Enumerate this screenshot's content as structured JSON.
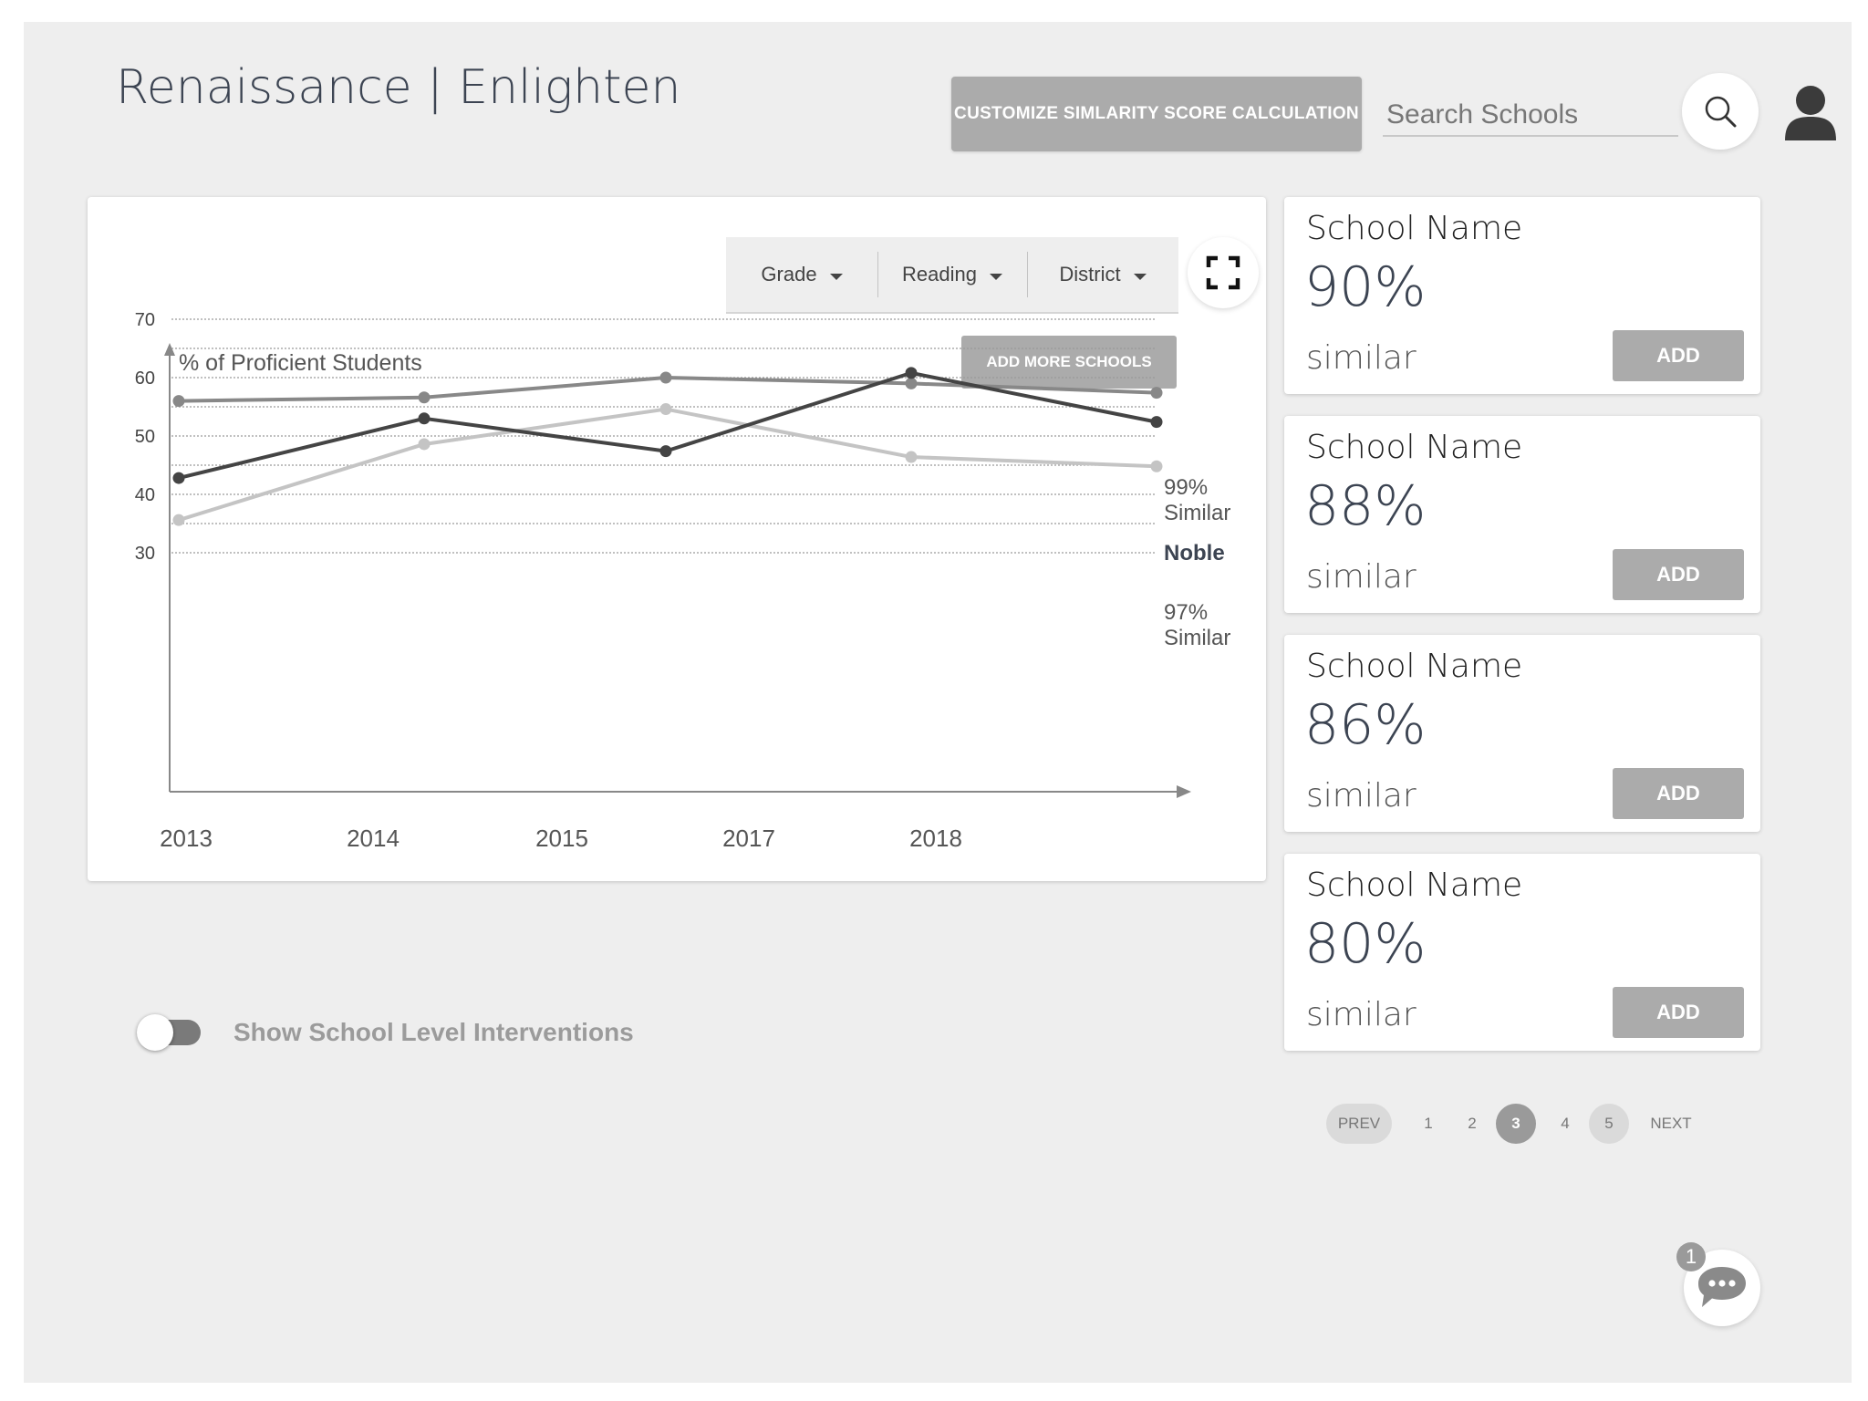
{
  "header": {
    "title": "Renaissance | Enlighten",
    "customize_button": "CUSTOMIZE SIMLARITY SCORE CALCULATION",
    "search_placeholder": "Search Schools"
  },
  "filters": [
    {
      "label": "Grade"
    },
    {
      "label": "Reading"
    },
    {
      "label": "District"
    }
  ],
  "chart_panel": {
    "add_more_button": "ADD MORE SCHOOLS"
  },
  "chart_data": {
    "type": "line",
    "ylabel": "% of Proficient Students",
    "yticks": [
      70,
      60,
      50,
      40,
      30
    ],
    "categories": [
      "2013",
      "2014",
      "2015",
      "2017",
      "2018"
    ],
    "series": [
      {
        "name": "99% Similar",
        "end_label_line1": "99%",
        "end_label_line2": "Similar",
        "color": "#888888",
        "values": [
          56,
          56.6,
          60,
          59,
          57.4
        ]
      },
      {
        "name": "Noble",
        "end_label_line1": "Noble",
        "color": "#444444",
        "values": [
          42.8,
          53,
          47.4,
          60.8,
          52.4
        ]
      },
      {
        "name": "97% Similar",
        "end_label_line1": "97%",
        "end_label_line2": "Similar",
        "color": "#c4c4c4",
        "values": [
          35.6,
          48.6,
          54.6,
          46.4,
          44.8
        ]
      }
    ]
  },
  "schools": [
    {
      "name": "School Name",
      "score": "90%",
      "similar": "similar",
      "add": "ADD"
    },
    {
      "name": "School Name",
      "score": "88%",
      "similar": "similar",
      "add": "ADD"
    },
    {
      "name": "School Name",
      "score": "86%",
      "similar": "similar",
      "add": "ADD"
    },
    {
      "name": "School Name",
      "score": "80%",
      "similar": "similar",
      "add": "ADD"
    }
  ],
  "toggle": {
    "label": "Show School Level Interventions",
    "on": false
  },
  "pagination": {
    "prev": "PREV",
    "next": "NEXT",
    "pages": [
      "1",
      "2",
      "3",
      "4",
      "5"
    ],
    "current": "3"
  },
  "chat": {
    "badge": "1"
  }
}
